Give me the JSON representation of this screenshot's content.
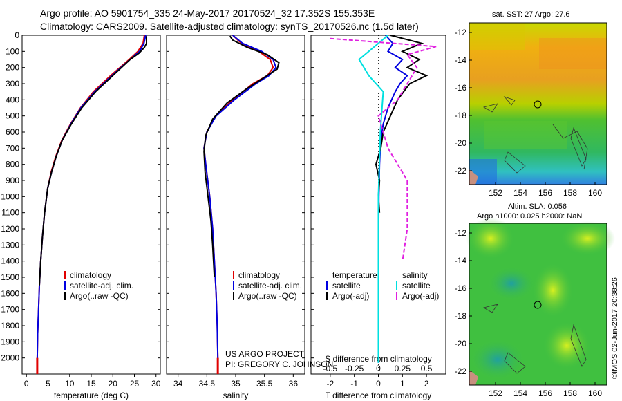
{
  "header": {
    "line1": "Argo profile: AO 5901754_335 24-May-2017 20170524_32 17.352S 155.353E",
    "line2": "Climatology: CARS2009. Satellite-adjusted climatology: synTS_20170526.nc (1.5d later)"
  },
  "stamp": "©IMOS 02-Jun-2017 20:38:26",
  "project": {
    "line1": "US ARGO PROJECT",
    "line2": "PI: GREGORY C. JOHNSON"
  },
  "colors": {
    "climatology": "#e00000",
    "satellite": "#0000e0",
    "argo": "#000000",
    "sal_satellite": "#00e0e0",
    "sal_argo": "#e020e0"
  },
  "chart_data": [
    {
      "type": "line",
      "panel": "temperature",
      "xlabel": "temperature (deg C)",
      "ylim": [
        2100,
        0
      ],
      "xlim": [
        -1,
        31
      ],
      "y_ticks": [
        0,
        100,
        200,
        300,
        400,
        500,
        600,
        700,
        800,
        900,
        1000,
        1100,
        1200,
        1300,
        1400,
        1500,
        1600,
        1700,
        1800,
        1900,
        2000
      ],
      "x_ticks": [
        "0",
        "5",
        "10",
        "15",
        "20",
        "25",
        "30"
      ],
      "x_tick_values": [
        0,
        5,
        10,
        15,
        20,
        25,
        30
      ],
      "legend": [
        "climatology",
        "satellite-adj. clim.",
        "Argo(..raw -QC)"
      ],
      "series": [
        {
          "name": "climatology",
          "color": "#e00000",
          "x": [
            27.3,
            27.0,
            25.8,
            23.8,
            19.5,
            15.5,
            12.5,
            10.2,
            8.2,
            6.8,
            5.7,
            4.9,
            4.2,
            3.7,
            3.3,
            3.0,
            2.8,
            2.6,
            2.5,
            2.5
          ],
          "y": [
            0,
            50,
            100,
            150,
            250,
            350,
            450,
            550,
            650,
            750,
            850,
            950,
            1100,
            1250,
            1400,
            1550,
            1700,
            1850,
            2000,
            2030
          ]
        },
        {
          "name": "satellite-adj. clim.",
          "color": "#0000e0",
          "x": [
            27.6,
            27.2,
            26.2,
            24.0,
            19.8,
            15.8,
            12.6,
            10.3,
            8.3,
            6.9,
            5.8,
            4.9,
            4.2,
            3.7,
            3.3,
            3.0,
            2.8,
            2.6,
            2.5,
            2.5
          ],
          "y": [
            0,
            50,
            100,
            150,
            250,
            350,
            450,
            550,
            650,
            750,
            850,
            950,
            1100,
            1250,
            1400,
            1550,
            1700,
            1850,
            2000,
            2030
          ]
        },
        {
          "name": "Argo(..raw -QC)",
          "color": "#000000",
          "x": [
            27.8,
            27.8,
            27.3,
            26.1,
            24.0,
            20.0,
            16.0,
            12.8,
            10.4,
            8.3,
            6.9,
            5.8,
            4.9,
            4.2,
            3.7,
            3.3,
            3.0
          ],
          "y": [
            5,
            50,
            75,
            110,
            150,
            250,
            350,
            450,
            550,
            650,
            750,
            850,
            950,
            1100,
            1250,
            1400,
            1550
          ]
        }
      ]
    },
    {
      "type": "line",
      "panel": "salinity",
      "xlabel": "salinity",
      "ylim": [
        2100,
        0
      ],
      "xlim": [
        33.8,
        36.2
      ],
      "y_ticks": [
        0,
        100,
        200,
        300,
        400,
        500,
        600,
        700,
        800,
        900,
        1000,
        1100,
        1200,
        1300,
        1400,
        1500,
        1600,
        1700,
        1800,
        1900,
        2000
      ],
      "x_ticks": [
        "34",
        "34.5",
        "35",
        "35.5",
        "36"
      ],
      "x_tick_values": [
        34,
        34.5,
        35,
        35.5,
        36
      ],
      "legend": [
        "climatology",
        "satellite-adj. clim.",
        "Argo(..raw -QC)"
      ],
      "series": [
        {
          "name": "climatology",
          "color": "#e00000",
          "x": [
            34.95,
            35.1,
            35.4,
            35.6,
            35.65,
            35.55,
            35.3,
            34.95,
            34.65,
            34.5,
            34.45,
            34.48,
            34.55,
            34.6,
            34.63,
            34.66,
            34.68,
            34.69,
            34.69
          ],
          "y": [
            0,
            50,
            100,
            150,
            200,
            250,
            300,
            400,
            500,
            600,
            700,
            800,
            1000,
            1200,
            1400,
            1600,
            1800,
            2000,
            2030
          ]
        },
        {
          "name": "satellite-adj. clim.",
          "color": "#0000e0",
          "x": [
            34.95,
            35.12,
            35.45,
            35.65,
            35.7,
            35.58,
            35.35,
            34.98,
            34.66,
            34.5,
            34.45,
            34.48,
            34.55,
            34.6,
            34.63,
            34.66,
            34.68,
            34.69,
            34.69
          ],
          "y": [
            0,
            50,
            100,
            150,
            200,
            250,
            300,
            400,
            500,
            600,
            700,
            800,
            1000,
            1200,
            1400,
            1600,
            1800,
            2000,
            2030
          ]
        },
        {
          "name": "Argo(..raw -QC)",
          "color": "#000000",
          "x": [
            34.9,
            34.95,
            35.2,
            35.55,
            35.75,
            35.72,
            35.5,
            35.2,
            34.85,
            34.6,
            34.48,
            34.45,
            34.47,
            34.52,
            34.57,
            34.6,
            34.63
          ],
          "y": [
            5,
            30,
            75,
            120,
            170,
            210,
            260,
            330,
            420,
            520,
            620,
            720,
            850,
            1000,
            1150,
            1300,
            1500
          ]
        }
      ]
    },
    {
      "type": "line",
      "panel": "differences",
      "xlabel_bottom": "T difference from climatology",
      "xlabel_top": "S difference from climatology",
      "ylim": [
        2100,
        0
      ],
      "xlim": [
        -2.8,
        2.8
      ],
      "x_ticks": [
        "-2",
        "-1",
        "0",
        "1",
        "2"
      ],
      "x_tick_values": [
        -2,
        -1,
        0,
        1,
        2
      ],
      "s_ticks": [
        "-0.5",
        "-0.25",
        "0",
        "0.25",
        "0.5"
      ],
      "s_tick_values": [
        -0.5,
        -0.25,
        0,
        0.25,
        0.5
      ],
      "legend_temperature": {
        "heading": "temperature",
        "items": [
          "satellite",
          "Argo(-adj)"
        ]
      },
      "legend_salinity": {
        "heading": "salinity",
        "items": [
          "satellite",
          "Argo(-adj)"
        ]
      },
      "series": [
        {
          "name": "temperature satellite",
          "color": "#0000e0",
          "x": [
            0.3,
            0.6,
            0.4,
            1.0,
            0.7,
            1.2,
            0.9,
            0.7,
            0.4,
            0.2,
            0.1,
            0.05,
            0.02,
            0.0,
            0.0
          ],
          "y": [
            0,
            50,
            100,
            150,
            200,
            250,
            300,
            350,
            450,
            550,
            650,
            800,
            1000,
            1500,
            2030
          ]
        },
        {
          "name": "temperature Argo(-adj)",
          "color": "#000000",
          "x": [
            0.5,
            1.8,
            1.0,
            1.7,
            1.2,
            2.0,
            1.3,
            0.8,
            0.5,
            0.2,
            0.1,
            -0.1,
            0.05,
            0.0,
            0.05
          ],
          "y": [
            0,
            50,
            100,
            150,
            200,
            250,
            300,
            400,
            500,
            600,
            700,
            800,
            900,
            1000,
            1100
          ]
        },
        {
          "name": "salinity satellite",
          "color": "#00e0e0",
          "x": [
            0.1,
            0.0,
            -0.2,
            -0.1,
            0.05,
            0.02,
            0.0,
            0.0
          ],
          "y": [
            0,
            50,
            150,
            250,
            350,
            600,
            1000,
            2030
          ]
        },
        {
          "name": "salinity Argo(-adj)",
          "color": "#e020e0",
          "x": [
            -0.5,
            0.6,
            0.3,
            0.4,
            0.3,
            0.2,
            0.0,
            0.1,
            0.3,
            0.3,
            0.25
          ],
          "y": [
            20,
            70,
            120,
            200,
            300,
            400,
            500,
            700,
            900,
            1200,
            1400
          ]
        }
      ]
    }
  ],
  "maps": {
    "sst": {
      "title": "sat. SST: 27 Argo: 27.6",
      "x_ticks": [
        "152",
        "154",
        "156",
        "158",
        "160"
      ],
      "y_ticks": [
        "-12",
        "-14",
        "-16",
        "-18",
        "-20",
        "-22"
      ]
    },
    "sla": {
      "title_line1": "Altim. SLA: 0.056",
      "title_line2": "Argo h1000: 0.025 h2000: NaN",
      "x_ticks": [
        "152",
        "154",
        "156",
        "158",
        "160"
      ],
      "y_ticks": [
        "-12",
        "-14",
        "-16",
        "-18",
        "-20",
        "-22"
      ]
    }
  }
}
